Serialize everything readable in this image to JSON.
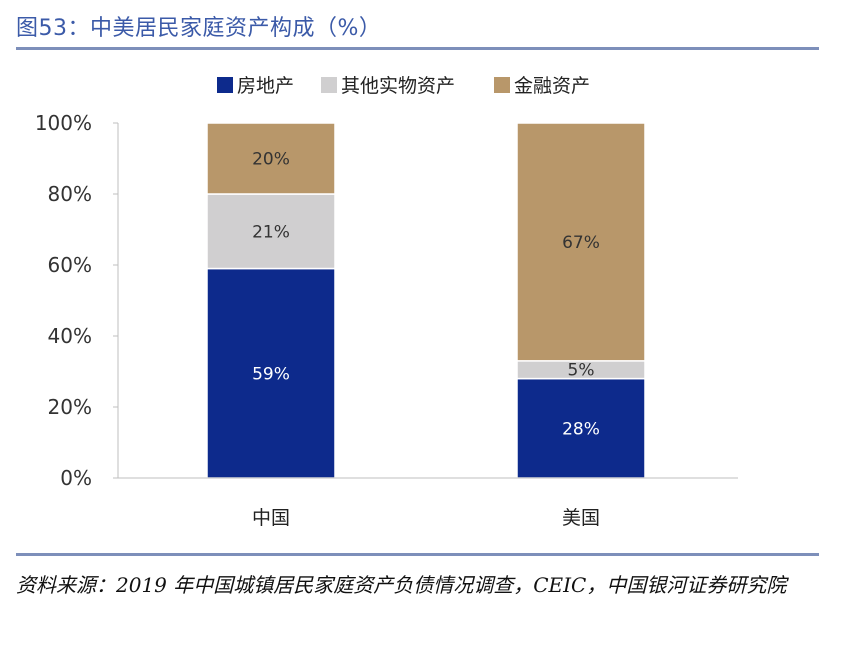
{
  "title": "图53：中美居民家庭资产构成（%）",
  "source": "资料来源：2019 年中国城镇居民家庭资产负债情况调查，CEIC，中国银河证券研究院",
  "chart_data": {
    "type": "bar",
    "stacked": true,
    "categories": [
      "中国",
      "美国"
    ],
    "series": [
      {
        "name": "房地产",
        "values": [
          59,
          28
        ],
        "labels": [
          "59%",
          "28%"
        ],
        "color": "#0d2a8c",
        "label_color": "#ffffff"
      },
      {
        "name": "其他实物资产",
        "values": [
          21,
          5
        ],
        "labels": [
          "21%",
          "5%"
        ],
        "color": "#d0cfd0",
        "label_color": "#333333"
      },
      {
        "name": "金融资产",
        "values": [
          20,
          67
        ],
        "labels": [
          "20%",
          "67%"
        ],
        "color": "#b8976a",
        "label_color": "#333333"
      }
    ],
    "yticks": [
      "0%",
      "20%",
      "40%",
      "60%",
      "80%",
      "100%"
    ],
    "ylim": [
      0,
      100
    ],
    "legend_position": "top",
    "grid": false
  }
}
